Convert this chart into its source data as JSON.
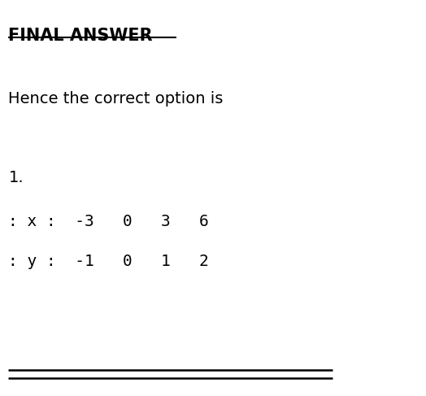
{
  "title": "FINAL ANSWER",
  "subtitle": "Hence the correct option is",
  "option_number": "1.",
  "row_x_label": ": x :",
  "row_y_label": ": y :",
  "x_values": "-3   0   3   6",
  "y_values": "-1   0   1   2",
  "bg_color": "#ffffff",
  "text_color": "#000000",
  "title_fontsize": 15,
  "subtitle_fontsize": 14,
  "option_fontsize": 14,
  "table_fontsize": 14,
  "line_color": "#000000"
}
